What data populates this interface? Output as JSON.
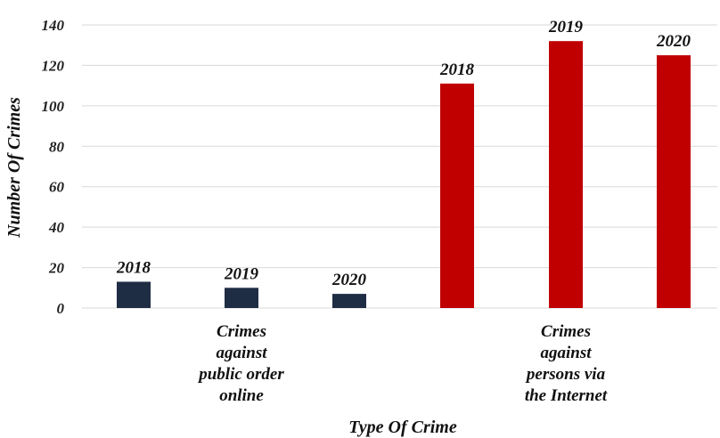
{
  "chart_data": {
    "type": "bar",
    "xlabel": "Type Of Crime",
    "ylabel": "Number Of Crimes",
    "ylim": [
      0,
      140
    ],
    "yticks": [
      0,
      20,
      40,
      60,
      80,
      100,
      120,
      140
    ],
    "grid": true,
    "groups": [
      {
        "label_lines": [
          "Crimes",
          "against",
          "public order",
          "online"
        ],
        "color": "#1f2d44",
        "bars": [
          {
            "label": "2018",
            "value": 13
          },
          {
            "label": "2019",
            "value": 10
          },
          {
            "label": "2020",
            "value": 7
          }
        ]
      },
      {
        "label_lines": [
          "Crimes",
          "against",
          "persons via",
          "the Internet"
        ],
        "color": "#c00000",
        "bars": [
          {
            "label": "2018",
            "value": 111
          },
          {
            "label": "2019",
            "value": 132
          },
          {
            "label": "2020",
            "value": 125
          }
        ]
      }
    ]
  }
}
